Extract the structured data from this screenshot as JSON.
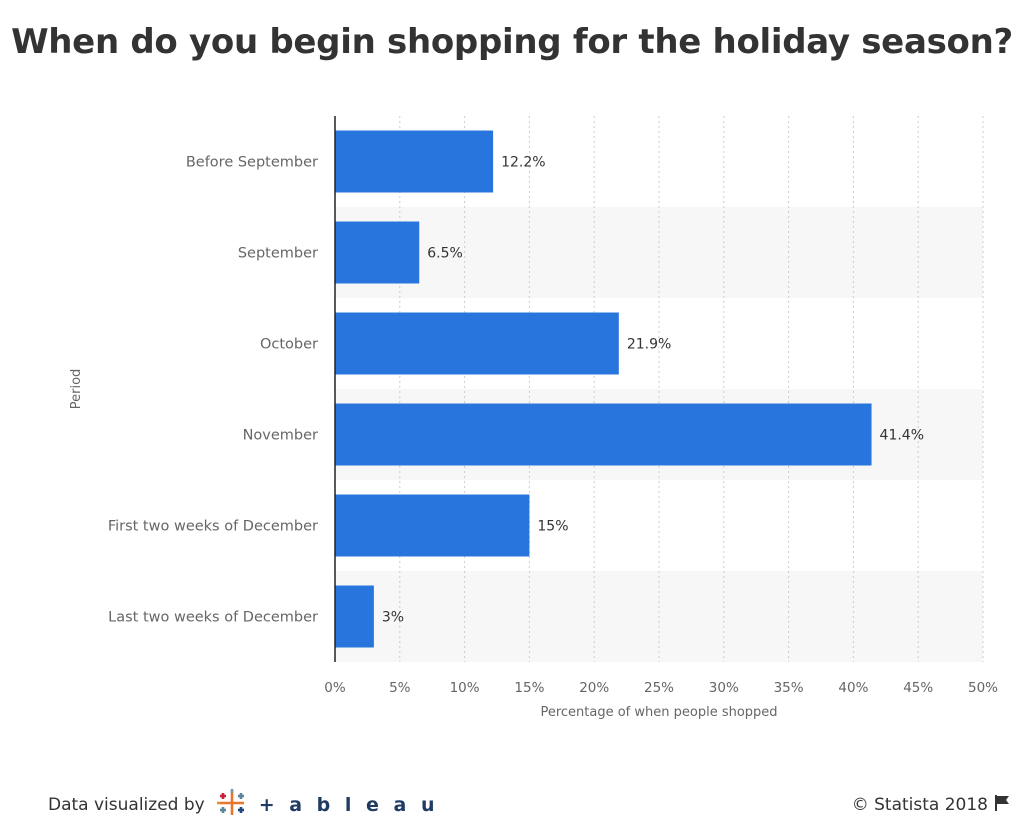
{
  "title": "When do you begin shopping for the holiday season?",
  "chart_data": {
    "type": "bar",
    "orientation": "horizontal",
    "categories": [
      "Before September",
      "September",
      "October",
      "November",
      "First two weeks of December",
      "Last two weeks of December"
    ],
    "values": [
      12.2,
      6.5,
      21.9,
      41.4,
      15,
      3
    ],
    "value_labels": [
      "12.2%",
      "6.5%",
      "21.9%",
      "41.4%",
      "15%",
      "3%"
    ],
    "xlabel": "Percentage of when people shopped",
    "ylabel": "Period",
    "xlim": [
      0,
      50
    ],
    "x_ticks": [
      0,
      5,
      10,
      15,
      20,
      25,
      30,
      35,
      40,
      45,
      50
    ],
    "x_tick_labels": [
      "0%",
      "5%",
      "10%",
      "15%",
      "20%",
      "25%",
      "30%",
      "35%",
      "40%",
      "45%",
      "50%"
    ],
    "grid": "vertical dotted",
    "bar_color": "#2876dd"
  },
  "footer": {
    "visualized_by": "Data visualized by",
    "tableau": "+ a b l e a u",
    "copyright": "© Statista 2018"
  },
  "icons": {
    "tableau_logo": "tableau-logo-icon",
    "flag": "flag-icon"
  }
}
